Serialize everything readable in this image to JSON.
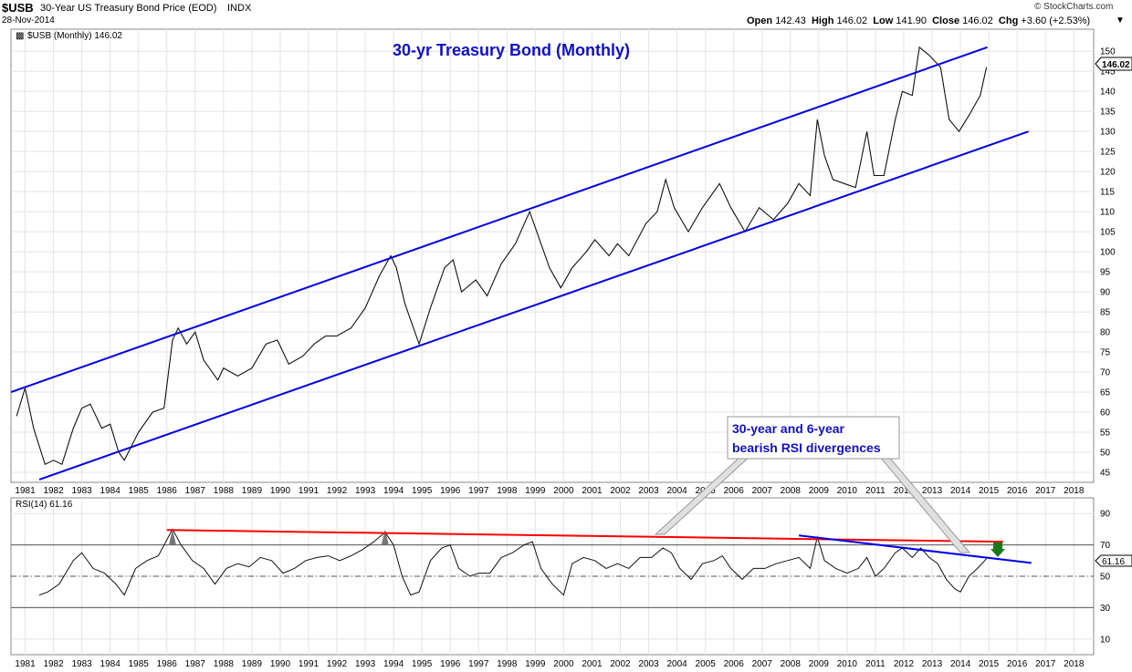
{
  "header": {
    "symbol": "$USB",
    "description": "30-Year US Treasury Bond Price (EOD)",
    "exchange": "INDX",
    "date": "28-Nov-2014",
    "brand": "© StockCharts.com",
    "open_label": "Open",
    "open": "142.43",
    "high_label": "High",
    "high": "146.02",
    "low_label": "Low",
    "low": "141.90",
    "close_label": "Close",
    "close": "146.02",
    "chg_label": "Chg",
    "chg": "+3.60 (+2.53%)"
  },
  "price_panel": {
    "legend": "$USB (Monthly) 146.02",
    "last_price_label": "146.02",
    "annotation_title": "30-yr Treasury Bond (Monthly)"
  },
  "rsi_panel": {
    "legend": "RSI(14) 61.16",
    "last_value_label": "61.16"
  },
  "divergence_note": {
    "line1": "30-year and 6-year",
    "line2": "bearish RSI divergences"
  },
  "colors": {
    "channel": "#0000e6",
    "red_trend": "#ff0000",
    "up_bar": "#000000",
    "down_bar": "#c8003c",
    "annotation": "#1010c8",
    "arrow": "#1a7a1a"
  },
  "chart_data": [
    {
      "type": "line",
      "title": "30-yr Treasury Bond (Monthly)",
      "series_name": "$USB (Monthly)",
      "x_unit": "year",
      "xlim": [
        1980.5,
        2018.7
      ],
      "ylim": [
        42.5,
        155.5
      ],
      "x_ticks": [
        1981,
        1982,
        1983,
        1984,
        1985,
        1986,
        1987,
        1988,
        1989,
        1990,
        1991,
        1992,
        1993,
        1994,
        1995,
        1996,
        1997,
        1998,
        1999,
        2000,
        2001,
        2002,
        2003,
        2004,
        2005,
        2006,
        2007,
        2008,
        2009,
        2010,
        2011,
        2012,
        2013,
        2014,
        2015,
        2016,
        2017,
        2018
      ],
      "y_ticks": [
        45,
        50,
        55,
        60,
        65,
        70,
        75,
        80,
        85,
        90,
        95,
        100,
        105,
        110,
        115,
        120,
        125,
        130,
        135,
        140,
        145,
        150
      ],
      "price_points": [
        [
          1980.7,
          59
        ],
        [
          1981.0,
          66
        ],
        [
          1981.3,
          56
        ],
        [
          1981.7,
          47
        ],
        [
          1982.0,
          48
        ],
        [
          1982.3,
          47
        ],
        [
          1982.7,
          56
        ],
        [
          1983.0,
          61
        ],
        [
          1983.3,
          62
        ],
        [
          1983.7,
          56
        ],
        [
          1984.0,
          57
        ],
        [
          1984.3,
          50
        ],
        [
          1984.5,
          48
        ],
        [
          1985.0,
          55
        ],
        [
          1985.5,
          60
        ],
        [
          1985.9,
          61
        ],
        [
          1986.2,
          78
        ],
        [
          1986.4,
          81
        ],
        [
          1986.7,
          77
        ],
        [
          1987.0,
          80
        ],
        [
          1987.3,
          73
        ],
        [
          1987.8,
          68
        ],
        [
          1988.0,
          71
        ],
        [
          1988.5,
          69
        ],
        [
          1989.0,
          71
        ],
        [
          1989.5,
          77
        ],
        [
          1989.9,
          78
        ],
        [
          1990.3,
          72
        ],
        [
          1990.8,
          74
        ],
        [
          1991.2,
          77
        ],
        [
          1991.6,
          79
        ],
        [
          1992.0,
          79
        ],
        [
          1992.5,
          81
        ],
        [
          1993.0,
          86
        ],
        [
          1993.5,
          94
        ],
        [
          1993.9,
          99
        ],
        [
          1994.1,
          96
        ],
        [
          1994.4,
          87
        ],
        [
          1994.9,
          77
        ],
        [
          1995.3,
          86
        ],
        [
          1995.8,
          96
        ],
        [
          1996.1,
          98
        ],
        [
          1996.4,
          90
        ],
        [
          1996.9,
          93
        ],
        [
          1997.3,
          89
        ],
        [
          1997.8,
          97
        ],
        [
          1998.3,
          102
        ],
        [
          1998.8,
          110
        ],
        [
          1999.0,
          106
        ],
        [
          1999.5,
          96
        ],
        [
          1999.9,
          91
        ],
        [
          2000.3,
          96
        ],
        [
          2000.8,
          100
        ],
        [
          2001.1,
          103
        ],
        [
          2001.6,
          99
        ],
        [
          2001.9,
          102
        ],
        [
          2002.3,
          99
        ],
        [
          2002.9,
          107
        ],
        [
          2003.3,
          110
        ],
        [
          2003.6,
          118
        ],
        [
          2003.9,
          111
        ],
        [
          2004.4,
          105
        ],
        [
          2004.9,
          111
        ],
        [
          2005.2,
          114
        ],
        [
          2005.5,
          117
        ],
        [
          2005.9,
          111
        ],
        [
          2006.4,
          105
        ],
        [
          2006.9,
          111
        ],
        [
          2007.4,
          108
        ],
        [
          2007.9,
          112
        ],
        [
          2008.3,
          117
        ],
        [
          2008.7,
          114
        ],
        [
          2008.95,
          133
        ],
        [
          2009.2,
          124
        ],
        [
          2009.5,
          118
        ],
        [
          2009.9,
          117
        ],
        [
          2010.3,
          116
        ],
        [
          2010.7,
          130
        ],
        [
          2010.95,
          119
        ],
        [
          2011.3,
          119
        ],
        [
          2011.7,
          133
        ],
        [
          2011.95,
          140
        ],
        [
          2012.3,
          139
        ],
        [
          2012.55,
          151
        ],
        [
          2012.9,
          149
        ],
        [
          2013.3,
          146
        ],
        [
          2013.6,
          133
        ],
        [
          2013.95,
          130
        ],
        [
          2014.3,
          134
        ],
        [
          2014.7,
          139
        ],
        [
          2014.92,
          146
        ]
      ],
      "channel_upper": {
        "x": [
          1980.5,
          2014.95
        ],
        "y": [
          65.0,
          151.0
        ]
      },
      "channel_lower": {
        "x": [
          1981.5,
          2016.4
        ],
        "y": [
          43.2,
          130.0
        ]
      }
    },
    {
      "type": "line",
      "title": "RSI(14)",
      "series_name": "RSI(14)",
      "xlim": [
        1980.5,
        2018.7
      ],
      "ylim": [
        0,
        100
      ],
      "y_ticks": [
        10,
        30,
        50,
        70,
        90
      ],
      "reference_lines": [
        30,
        50,
        70
      ],
      "last_value": 61.16,
      "rsi_points": [
        [
          1981.5,
          38
        ],
        [
          1981.8,
          40
        ],
        [
          1982.2,
          45
        ],
        [
          1982.7,
          60
        ],
        [
          1983.0,
          65
        ],
        [
          1983.4,
          55
        ],
        [
          1983.8,
          52
        ],
        [
          1984.2,
          45
        ],
        [
          1984.5,
          38
        ],
        [
          1984.9,
          55
        ],
        [
          1985.3,
          60
        ],
        [
          1985.7,
          63
        ],
        [
          1986.2,
          80
        ],
        [
          1986.5,
          70
        ],
        [
          1986.9,
          60
        ],
        [
          1987.3,
          55
        ],
        [
          1987.7,
          45
        ],
        [
          1988.1,
          55
        ],
        [
          1988.5,
          58
        ],
        [
          1988.9,
          56
        ],
        [
          1989.3,
          62
        ],
        [
          1989.7,
          60
        ],
        [
          1990.1,
          52
        ],
        [
          1990.5,
          55
        ],
        [
          1990.9,
          60
        ],
        [
          1991.3,
          62
        ],
        [
          1991.7,
          63
        ],
        [
          1992.1,
          60
        ],
        [
          1992.5,
          63
        ],
        [
          1992.9,
          67
        ],
        [
          1993.3,
          72
        ],
        [
          1993.7,
          78
        ],
        [
          1994.0,
          70
        ],
        [
          1994.3,
          50
        ],
        [
          1994.6,
          38
        ],
        [
          1994.9,
          40
        ],
        [
          1995.3,
          60
        ],
        [
          1995.7,
          68
        ],
        [
          1996.0,
          70
        ],
        [
          1996.3,
          55
        ],
        [
          1996.7,
          50
        ],
        [
          1997.0,
          52
        ],
        [
          1997.4,
          52
        ],
        [
          1997.8,
          62
        ],
        [
          1998.2,
          65
        ],
        [
          1998.6,
          70
        ],
        [
          1998.9,
          72
        ],
        [
          1999.2,
          55
        ],
        [
          1999.6,
          45
        ],
        [
          2000.0,
          38
        ],
        [
          2000.3,
          58
        ],
        [
          2000.7,
          62
        ],
        [
          2001.1,
          60
        ],
        [
          2001.5,
          55
        ],
        [
          2001.9,
          58
        ],
        [
          2002.3,
          55
        ],
        [
          2002.7,
          62
        ],
        [
          2003.1,
          62
        ],
        [
          2003.5,
          68
        ],
        [
          2003.8,
          65
        ],
        [
          2004.1,
          55
        ],
        [
          2004.5,
          48
        ],
        [
          2004.9,
          58
        ],
        [
          2005.3,
          60
        ],
        [
          2005.6,
          63
        ],
        [
          2005.9,
          55
        ],
        [
          2006.3,
          48
        ],
        [
          2006.7,
          55
        ],
        [
          2007.1,
          55
        ],
        [
          2007.5,
          58
        ],
        [
          2007.9,
          60
        ],
        [
          2008.3,
          62
        ],
        [
          2008.7,
          55
        ],
        [
          2008.95,
          75
        ],
        [
          2009.2,
          60
        ],
        [
          2009.6,
          55
        ],
        [
          2010.0,
          52
        ],
        [
          2010.4,
          55
        ],
        [
          2010.7,
          62
        ],
        [
          2011.0,
          50
        ],
        [
          2011.3,
          55
        ],
        [
          2011.7,
          65
        ],
        [
          2011.95,
          68
        ],
        [
          2012.3,
          62
        ],
        [
          2012.6,
          68
        ],
        [
          2012.9,
          62
        ],
        [
          2013.2,
          58
        ],
        [
          2013.5,
          48
        ],
        [
          2013.8,
          42
        ],
        [
          2014.0,
          40
        ],
        [
          2014.3,
          50
        ],
        [
          2014.6,
          55
        ],
        [
          2014.92,
          61.16
        ]
      ],
      "red_trendline": {
        "x": [
          1986.0,
          2015.5
        ],
        "y": [
          79.5,
          72.0
        ]
      },
      "blue_trendline": {
        "x": [
          2008.3,
          2016.5
        ],
        "y": [
          76.0,
          58.5
        ]
      },
      "highlighted_peaks": [
        1986.2,
        1993.7
      ]
    }
  ]
}
